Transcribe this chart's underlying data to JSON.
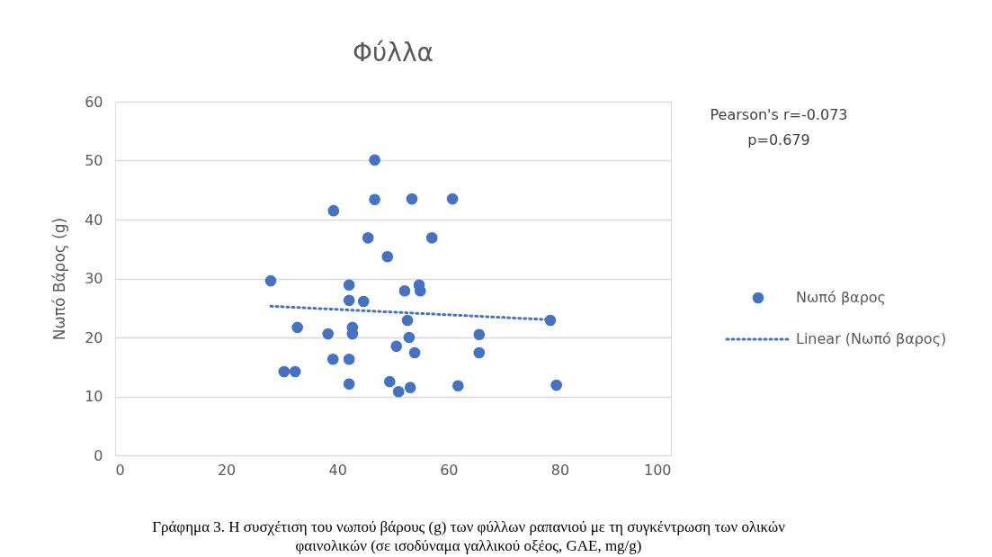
{
  "chart_data": {
    "type": "scatter",
    "title": "Φύλλα",
    "ylabel": "Νωπό Βάρος (g)",
    "xlim": [
      0,
      100
    ],
    "xticks": [
      0,
      20,
      40,
      60,
      80,
      100
    ],
    "ylim": [
      0,
      60
    ],
    "yticks": [
      0,
      10,
      20,
      30,
      40,
      50,
      60
    ],
    "grid": "y",
    "legend": "right",
    "series": [
      {
        "name": "Νωπό βαρος",
        "marker": "circle",
        "color": "#4472c4",
        "x": [
          28.0,
          30.4,
          32.4,
          32.8,
          38.3,
          39.2,
          39.3,
          42.1,
          42.1,
          42.1,
          42.1,
          42.7,
          42.7,
          44.7,
          45.5,
          46.7,
          46.7,
          49.0,
          49.4,
          50.6,
          51.0,
          52.1,
          52.6,
          52.9,
          53.1,
          53.4,
          53.9,
          54.7,
          54.9,
          57.0,
          60.7,
          61.7,
          65.5,
          65.5,
          78.3,
          79.4
        ],
        "values": [
          29.6,
          14.2,
          14.2,
          21.7,
          20.6,
          16.3,
          41.5,
          28.9,
          26.3,
          16.3,
          12.1,
          21.7,
          20.6,
          26.1,
          36.9,
          43.4,
          50.1,
          33.7,
          12.5,
          18.5,
          10.8,
          27.9,
          22.9,
          20.0,
          11.5,
          43.5,
          17.4,
          28.9,
          27.9,
          36.9,
          43.5,
          11.8,
          20.5,
          17.4,
          22.9,
          11.9
        ]
      },
      {
        "name": "Linear (Νωπό βαρος)",
        "type": "line",
        "line_style": "dotted",
        "color": "#4472c4",
        "x": [
          28.0,
          78.3
        ],
        "values": [
          25.3,
          23.0
        ]
      }
    ],
    "annotations": [
      "Pearson's r=-0.073",
      "p=0.679",
      "Γράφημα 3. Η συσχέτιση του νωπού βάρους (g) των φύλλων ραπανιού με τη συγκέντρωση των ολικών",
      "φαινολικών (σε ισοδύναμα γαλλικού οξέος, GAE, mg/g)"
    ]
  }
}
